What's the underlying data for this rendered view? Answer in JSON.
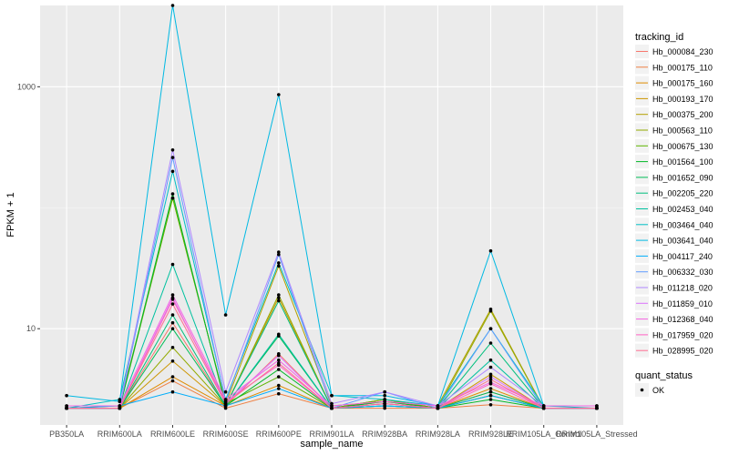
{
  "chart_data": {
    "type": "line",
    "title": "",
    "xlabel": "sample_name",
    "ylabel": "FPKM + 1",
    "y_scale": "log10",
    "y_ticks": [
      10,
      1000
    ],
    "ylim": [
      1.6,
      4700
    ],
    "grid": true,
    "legend_position": "right",
    "legend_title": "tracking_id",
    "point_legend_title": "quant_status",
    "point_legend_entries": [
      "OK"
    ],
    "point_color": "#000000",
    "categories": [
      "PB350LA",
      "RRIM600LA",
      "RRIM600LE",
      "RRIM600SE",
      "RRIM600PE",
      "RRIM901LA",
      "RRIM928BA",
      "RRIM928LA",
      "RRIM928LE",
      "RRIM105LA_Control",
      "RRIM105LA_Stressed"
    ],
    "series": [
      {
        "name": "Hb_000084_230",
        "color": "#F8766D",
        "values": [
          2.2,
          2.2,
          11.2,
          2.3,
          6.2,
          2.2,
          2.3,
          2.2,
          3.0,
          2.2,
          2.2
        ]
      },
      {
        "name": "Hb_000175_110",
        "color": "#EE8043",
        "values": [
          2.2,
          2.2,
          3.7,
          2.2,
          2.9,
          2.2,
          2.2,
          2.2,
          2.35,
          2.2,
          2.2
        ]
      },
      {
        "name": "Hb_000175_160",
        "color": "#DF8B00",
        "values": [
          2.2,
          2.2,
          4.0,
          2.3,
          3.4,
          2.2,
          2.6,
          2.2,
          3.2,
          2.2,
          2.2
        ]
      },
      {
        "name": "Hb_000193_170",
        "color": "#CC9600",
        "values": [
          2.2,
          2.2,
          5.4,
          2.3,
          18.0,
          2.2,
          2.6,
          2.2,
          4.2,
          2.2,
          2.2
        ]
      },
      {
        "name": "Hb_000375_200",
        "color": "#B3A000",
        "values": [
          2.2,
          2.3,
          120,
          2.4,
          33,
          2.3,
          2.5,
          2.3,
          14.5,
          2.2,
          2.2
        ]
      },
      {
        "name": "Hb_000563_110",
        "color": "#93AA00",
        "values": [
          2.2,
          2.2,
          7.0,
          2.3,
          19.0,
          2.2,
          2.5,
          2.2,
          14.0,
          2.2,
          2.2
        ]
      },
      {
        "name": "Hb_000675_130",
        "color": "#5EB300",
        "values": [
          2.2,
          2.2,
          120,
          2.4,
          4.0,
          2.2,
          2.6,
          2.2,
          2.8,
          2.2,
          2.2
        ]
      },
      {
        "name": "Hb_001564_100",
        "color": "#00B826",
        "values": [
          2.2,
          2.2,
          130,
          2.3,
          4.6,
          2.2,
          2.5,
          2.2,
          2.6,
          2.2,
          2.2
        ]
      },
      {
        "name": "Hb_001652_090",
        "color": "#00BC56",
        "values": [
          2.2,
          2.2,
          10.0,
          2.3,
          8.7,
          2.2,
          2.4,
          2.2,
          3.0,
          2.2,
          2.2
        ]
      },
      {
        "name": "Hb_002205_220",
        "color": "#00BF7D",
        "values": [
          2.2,
          2.2,
          13.0,
          2.3,
          17.0,
          2.2,
          2.3,
          2.2,
          7.6,
          2.2,
          2.2
        ]
      },
      {
        "name": "Hb_002453_040",
        "color": "#00C19F",
        "values": [
          2.2,
          2.2,
          34.0,
          2.3,
          9.0,
          2.2,
          2.3,
          2.2,
          5.5,
          2.2,
          2.2
        ]
      },
      {
        "name": "Hb_003464_040",
        "color": "#00BFC4",
        "values": [
          2.2,
          2.6,
          200,
          2.6,
          35,
          2.8,
          2.6,
          2.3,
          10.0,
          2.3,
          2.2
        ]
      },
      {
        "name": "Hb_003641_040",
        "color": "#00B9E3",
        "values": [
          2.8,
          2.5,
          4700,
          13.0,
          860,
          2.8,
          2.8,
          2.3,
          44.0,
          2.3,
          2.3
        ]
      },
      {
        "name": "Hb_004117_240",
        "color": "#00ADFA",
        "values": [
          2.2,
          2.3,
          3.0,
          2.3,
          3.2,
          2.2,
          2.3,
          2.2,
          2.8,
          2.2,
          2.2
        ]
      },
      {
        "name": "Hb_006332_030",
        "color": "#619CFF",
        "values": [
          2.2,
          2.2,
          260,
          2.5,
          41,
          2.2,
          3.0,
          2.2,
          10.0,
          2.2,
          2.2
        ]
      },
      {
        "name": "Hb_011218_020",
        "color": "#AE87FF",
        "values": [
          2.3,
          2.3,
          300,
          3.0,
          43,
          2.4,
          3.0,
          2.3,
          4.8,
          2.3,
          2.3
        ]
      },
      {
        "name": "Hb_011859_010",
        "color": "#DB72FB",
        "values": [
          2.2,
          2.2,
          18.0,
          2.4,
          6.0,
          2.2,
          2.4,
          2.2,
          4.0,
          2.2,
          2.2
        ]
      },
      {
        "name": "Hb_012368_040",
        "color": "#F564E3",
        "values": [
          2.3,
          2.3,
          19.0,
          2.6,
          5.5,
          2.3,
          2.5,
          2.3,
          3.6,
          2.3,
          2.3
        ]
      },
      {
        "name": "Hb_017959_020",
        "color": "#FF61C3",
        "values": [
          2.2,
          2.2,
          17.5,
          2.5,
          5.0,
          2.2,
          2.4,
          2.2,
          3.5,
          2.2,
          2.2
        ]
      },
      {
        "name": "Hb_028995_020",
        "color": "#FF6C91",
        "values": [
          2.2,
          2.2,
          16.0,
          2.4,
          5.2,
          2.2,
          2.4,
          2.2,
          3.8,
          2.2,
          2.2
        ]
      }
    ]
  }
}
